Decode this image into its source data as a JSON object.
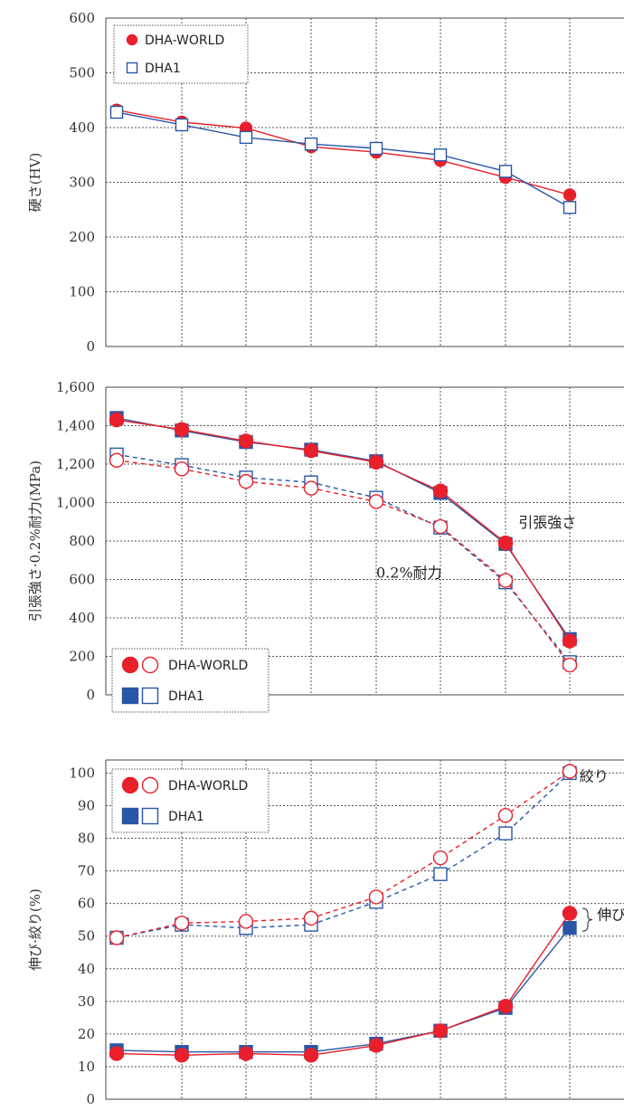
{
  "colors": {
    "red": "#e8202b",
    "blue": "#2a56a7"
  },
  "chart_data": [
    {
      "type": "line",
      "ylabel": "硬さ(HV)",
      "ylim": [
        0,
        600
      ],
      "yticks": [
        "0",
        "100",
        "200",
        "300",
        "400",
        "500",
        "600"
      ],
      "ytick_values": [
        0,
        100,
        200,
        300,
        400,
        500,
        600
      ],
      "x": [
        1,
        2,
        3,
        4,
        5,
        6,
        7,
        8
      ],
      "series": [
        {
          "name": "DHA-WORLD",
          "marker": "circle-filled",
          "color": "#e8202b",
          "dashed": false,
          "values": [
            432,
            410,
            399,
            365,
            355,
            340,
            309,
            277
          ]
        },
        {
          "name": "DHA1",
          "marker": "square-open",
          "color": "#2a56a7",
          "dashed": false,
          "values": [
            428,
            405,
            382,
            370,
            362,
            350,
            320,
            254
          ]
        }
      ],
      "legend": {
        "placement": "top-left",
        "entries": [
          {
            "label": "DHA-WORLD",
            "markers": [
              "circle-filled"
            ],
            "color": "#e8202b"
          },
          {
            "label": "DHA1",
            "markers": [
              "square-open"
            ],
            "color": "#2a56a7"
          }
        ]
      },
      "annotations": []
    },
    {
      "type": "line",
      "ylabel": "引張強さ·0.2%耐力(MPa)",
      "ylim": [
        0,
        1600
      ],
      "yticks": [
        "0",
        "200",
        "400",
        "600",
        "800",
        "1,000",
        "1,200",
        "1,400",
        "1,600"
      ],
      "ytick_values": [
        0,
        200,
        400,
        600,
        800,
        1000,
        1200,
        1400,
        1600
      ],
      "x": [
        1,
        2,
        3,
        4,
        5,
        6,
        7,
        8
      ],
      "series": [
        {
          "name": "DHA1",
          "marker": "square-filled",
          "color": "#2a56a7",
          "dashed": false,
          "values": [
            1440,
            1375,
            1315,
            1275,
            1215,
            1050,
            785,
            290
          ]
        },
        {
          "name": "DHA-WORLD",
          "marker": "circle-filled",
          "color": "#e8202b",
          "dashed": false,
          "values": [
            1430,
            1380,
            1320,
            1270,
            1210,
            1060,
            790,
            280
          ]
        },
        {
          "name": "DHA1",
          "marker": "square-open",
          "color": "#2a56a7",
          "dashed": true,
          "values": [
            1250,
            1195,
            1130,
            1105,
            1025,
            870,
            585,
            170
          ]
        },
        {
          "name": "DHA-WORLD",
          "marker": "circle-open",
          "color": "#e8202b",
          "dashed": true,
          "values": [
            1220,
            1175,
            1110,
            1075,
            1005,
            875,
            595,
            155
          ]
        }
      ],
      "legend": {
        "placement": "bottom-left",
        "entries": [
          {
            "label": "DHA-WORLD",
            "markers": [
              "circle-filled",
              "circle-open"
            ],
            "color": "#e8202b"
          },
          {
            "label": "DHA1",
            "markers": [
              "square-filled",
              "square-open"
            ],
            "color": "#2a56a7"
          }
        ]
      },
      "annotations": [
        {
          "text": "引張強さ",
          "x": 7.2,
          "y": 870
        },
        {
          "text": "0.2%耐力",
          "x": 5.0,
          "y": 610
        }
      ]
    },
    {
      "type": "line",
      "ylabel": "伸び·絞り(%)",
      "ylim": [
        0,
        104
      ],
      "yticks": [
        "0",
        "10",
        "20",
        "30",
        "40",
        "50",
        "60",
        "70",
        "80",
        "90",
        "100"
      ],
      "ytick_values": [
        0,
        10,
        20,
        30,
        40,
        50,
        60,
        70,
        80,
        90,
        100
      ],
      "x": [
        1,
        2,
        3,
        4,
        5,
        6,
        7,
        8
      ],
      "series": [
        {
          "name": "DHA1",
          "marker": "square-open",
          "color": "#2a56a7",
          "dashed": true,
          "values": [
            49.5,
            53.5,
            52.5,
            53.5,
            60.5,
            69,
            81.5,
            100
          ]
        },
        {
          "name": "DHA-WORLD",
          "marker": "circle-open",
          "color": "#e8202b",
          "dashed": true,
          "values": [
            49.5,
            54,
            54.5,
            55.5,
            62,
            74,
            87,
            100.5
          ]
        },
        {
          "name": "DHA1",
          "marker": "square-filled",
          "color": "#2a56a7",
          "dashed": false,
          "values": [
            15,
            14.5,
            14.5,
            14.5,
            17,
            21,
            28,
            52.5
          ]
        },
        {
          "name": "DHA-WORLD",
          "marker": "circle-filled",
          "color": "#e8202b",
          "dashed": false,
          "values": [
            14,
            13.5,
            14,
            13.5,
            16.5,
            21,
            28.5,
            57
          ]
        }
      ],
      "legend": {
        "placement": "top-left",
        "entries": [
          {
            "label": "DHA-WORLD",
            "markers": [
              "circle-filled",
              "circle-open"
            ],
            "color": "#e8202b"
          },
          {
            "label": "DHA1",
            "markers": [
              "square-filled",
              "square-open"
            ],
            "color": "#2a56a7"
          }
        ]
      },
      "annotations": [
        {
          "text": "絞り",
          "x": 8.15,
          "y": 97.5
        },
        {
          "text": "伸び",
          "x": 8.42,
          "y": 55
        }
      ]
    }
  ]
}
